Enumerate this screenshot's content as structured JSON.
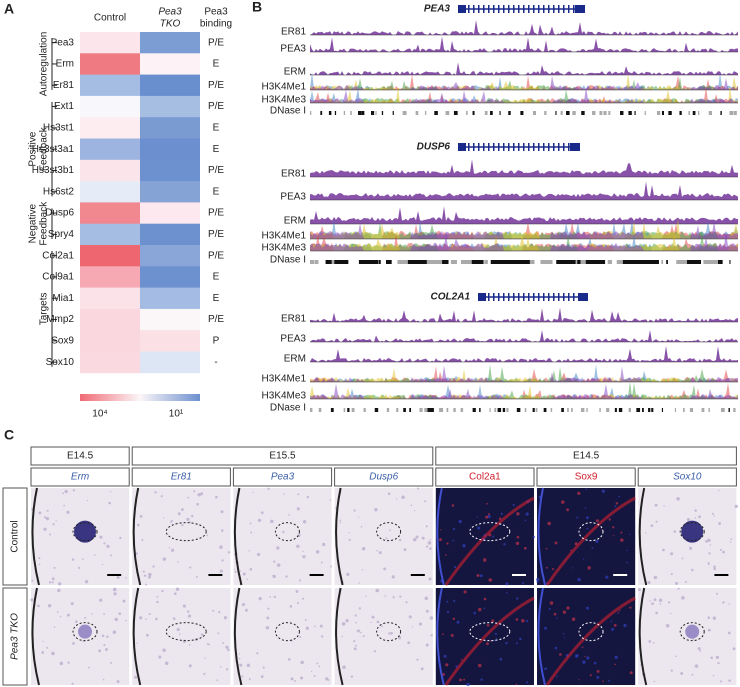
{
  "panel_a": {
    "label": "A",
    "headers": {
      "control": [
        "Control"
      ],
      "tko": [
        "Pea3",
        "TKO"
      ],
      "binding": [
        "Pea3",
        "binding"
      ]
    },
    "groups": [
      {
        "label_lines": [
          "Autoregulation"
        ],
        "rows": [
          {
            "gene": "Pea3",
            "binding": "P/E",
            "colors": [
              "#fce6ec",
              "#7c9dd3"
            ]
          },
          {
            "gene": "Erm",
            "binding": "E",
            "colors": [
              "#f07a82",
              "#fdf2f5"
            ]
          },
          {
            "gene": "Er81",
            "binding": "P/E",
            "colors": [
              "#a6bde3",
              "#6a8fcf"
            ]
          }
        ]
      },
      {
        "label_lines": [
          "Positive",
          "Feedback"
        ],
        "rows": [
          {
            "gene": "Ext1",
            "binding": "P/E",
            "colors": [
              "#f8f7fb",
              "#a7bee3"
            ]
          },
          {
            "gene": "Hs3st1",
            "binding": "E",
            "colors": [
              "#fdedf1",
              "#7a9ad2"
            ]
          },
          {
            "gene": "Hs3st3a1",
            "binding": "E",
            "colors": [
              "#9cb4df",
              "#6c8fcf"
            ]
          },
          {
            "gene": "Hs3st3b1",
            "binding": "P/E",
            "colors": [
              "#fbe5eb",
              "#6d90cf"
            ]
          },
          {
            "gene": "Hs6st2",
            "binding": "E",
            "colors": [
              "#e5ecf7",
              "#86a3d6"
            ]
          }
        ]
      },
      {
        "label_lines": [
          "Negative",
          "Feedback"
        ],
        "rows": [
          {
            "gene": "Dusp6",
            "binding": "P/E",
            "colors": [
              "#f1878f",
              "#fce8ee"
            ]
          },
          {
            "gene": "Spry4",
            "binding": "P/E",
            "colors": [
              "#a6bde3",
              "#6d90cf"
            ]
          }
        ]
      },
      {
        "label_lines": [
          "Targets"
        ],
        "rows": [
          {
            "gene": "Col2a1",
            "binding": "P/E",
            "colors": [
              "#ee6670",
              "#8aa6d8"
            ]
          },
          {
            "gene": "Col9a1",
            "binding": "E",
            "colors": [
              "#f6a9b2",
              "#6d90cf"
            ]
          },
          {
            "gene": "Mia1",
            "binding": "E",
            "colors": [
              "#fbe2e8",
              "#a4bbe3"
            ]
          },
          {
            "gene": "Mmp2",
            "binding": "P/E",
            "colors": [
              "#fad7de",
              "#fbf6f8"
            ]
          },
          {
            "gene": "Sox9",
            "binding": "P",
            "colors": [
              "#fad7de",
              "#fbe0e6"
            ]
          },
          {
            "gene": "Sox10",
            "binding": "-",
            "colors": [
              "#fad9e0",
              "#dde6f4"
            ]
          }
        ]
      }
    ],
    "scale": {
      "colors": [
        "#f06a74",
        "#6d90cf"
      ],
      "low_label": "10⁴",
      "high_label": "10¹"
    }
  },
  "panel_b": {
    "label": "B",
    "loci": [
      {
        "gene": "PEA3",
        "tracks": [
          "ER81",
          "PEA3",
          "ERM",
          "H3K4Me1",
          "H3K4Me3",
          "DNase I"
        ]
      },
      {
        "gene": "DUSP6",
        "tracks": [
          "ER81",
          "PEA3",
          "ERM",
          "H3K4Me1",
          "H3K4Me3",
          "DNase I"
        ]
      },
      {
        "gene": "COL2A1",
        "tracks": [
          "ER81",
          "PEA3",
          "ERM",
          "H3K4Me1",
          "H3K4Me3",
          "DNase I"
        ]
      }
    ]
  },
  "panel_c": {
    "label": "C",
    "stages": [
      {
        "label": "E14.5",
        "genes": [
          {
            "name": "Erm",
            "color": "#3a5ea8",
            "italic": true,
            "kind": "ish"
          }
        ]
      },
      {
        "label": "E15.5",
        "genes": [
          {
            "name": "Er81",
            "color": "#3a5ea8",
            "italic": true,
            "kind": "ish"
          },
          {
            "name": "Pea3",
            "color": "#3a5ea8",
            "italic": true,
            "kind": "ish"
          },
          {
            "name": "Dusp6",
            "color": "#3a5ea8",
            "italic": true,
            "kind": "ish"
          }
        ]
      },
      {
        "label": "E14.5",
        "genes": [
          {
            "name": "Col2a1",
            "color": "#d0202e",
            "italic": false,
            "kind": "fluor"
          },
          {
            "name": "Sox9",
            "color": "#d0202e",
            "italic": false,
            "kind": "fluor"
          },
          {
            "name": "Sox10",
            "color": "#3a5ea8",
            "italic": true,
            "kind": "ish"
          }
        ]
      }
    ],
    "rows": [
      {
        "label": "Control",
        "italic": false
      },
      {
        "label": "Pea3 TKO",
        "italic": true
      }
    ]
  }
}
